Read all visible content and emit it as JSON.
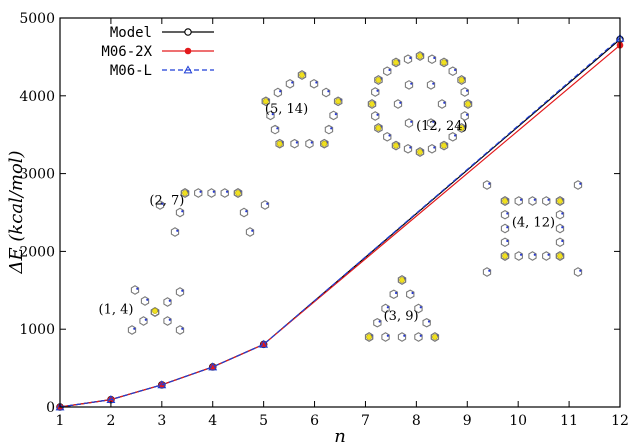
{
  "chart_data": {
    "type": "line",
    "title": "",
    "xlabel": "n",
    "ylabel": "ΔE (kcal/mol)",
    "xlim": [
      1,
      12
    ],
    "ylim": [
      0,
      5000
    ],
    "xticks": [
      1,
      2,
      3,
      4,
      5,
      6,
      7,
      8,
      9,
      10,
      11,
      12
    ],
    "yticks": [
      0,
      1000,
      2000,
      3000,
      4000,
      5000
    ],
    "legend_position": "top-left",
    "series": [
      {
        "name": "Model",
        "color": "#000000",
        "marker": "circle-open",
        "line": "solid",
        "x": [
          1,
          2,
          3,
          4,
          5,
          12
        ],
        "y": [
          0,
          95,
          285,
          515,
          805,
          4725
        ]
      },
      {
        "name": "M06-2X",
        "color": "#e31a1c",
        "marker": "circle-filled",
        "line": "solid",
        "x": [
          1,
          2,
          3,
          4,
          5,
          12
        ],
        "y": [
          0,
          95,
          285,
          515,
          805,
          4650
        ]
      },
      {
        "name": "M06-L",
        "color": "#1f3fd6",
        "marker": "triangle-open",
        "line": "dashed",
        "x": [
          1,
          2,
          3,
          4,
          5,
          12
        ],
        "y": [
          0,
          95,
          285,
          515,
          805,
          4740
        ]
      }
    ],
    "annotations": [
      {
        "label": "(1, 4)",
        "x": 2.1,
        "y": 1200
      },
      {
        "label": "(2, 7)",
        "x": 3.1,
        "y": 2600
      },
      {
        "label": "(5, 14)",
        "x": 5.45,
        "y": 3780
      },
      {
        "label": "(12, 24)",
        "x": 8.5,
        "y": 3560
      },
      {
        "label": "(3, 9)",
        "x": 7.7,
        "y": 1120
      },
      {
        "label": "(4, 12)",
        "x": 10.3,
        "y": 2320
      }
    ],
    "molecules": [
      {
        "label": "(1, 4)",
        "icon": "molecule-1-4-icon"
      },
      {
        "label": "(2, 7)",
        "icon": "molecule-2-7-icon"
      },
      {
        "label": "(5, 14)",
        "icon": "molecule-5-14-icon"
      },
      {
        "label": "(12, 24)",
        "icon": "molecule-12-24-icon"
      },
      {
        "label": "(3, 9)",
        "icon": "molecule-3-9-icon"
      },
      {
        "label": "(4, 12)",
        "icon": "molecule-4-12-icon"
      }
    ]
  }
}
